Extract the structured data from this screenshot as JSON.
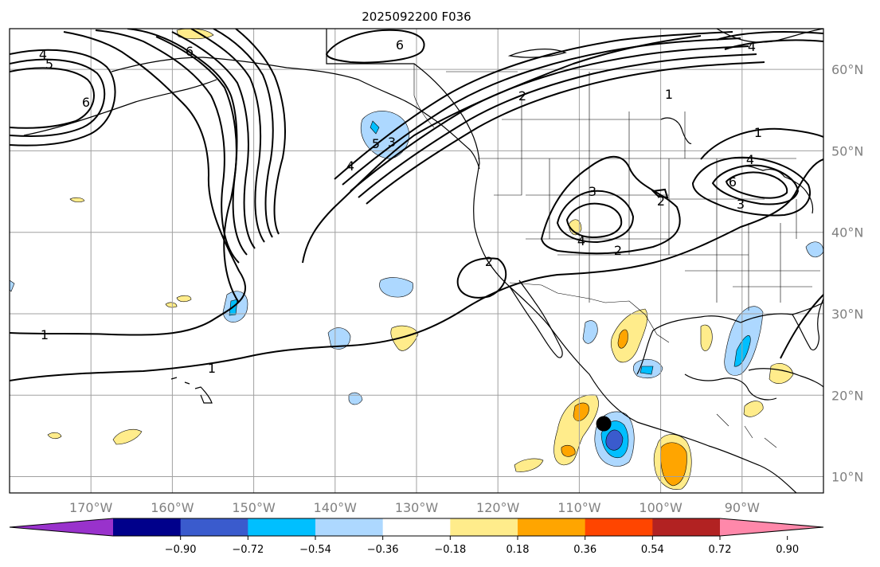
{
  "title": "2025092200 F036",
  "map": {
    "lat_labels": [
      {
        "value": 10,
        "label": "10°N"
      },
      {
        "value": 20,
        "label": "20°N"
      },
      {
        "value": 30,
        "label": "30°N"
      },
      {
        "value": 40,
        "label": "40°N"
      },
      {
        "value": 50,
        "label": "50°N"
      },
      {
        "value": 60,
        "label": "60°N"
      }
    ],
    "lon_labels": [
      {
        "value": -170,
        "label": "170°W"
      },
      {
        "value": -160,
        "label": "160°W"
      },
      {
        "value": -150,
        "label": "150°W"
      },
      {
        "value": -140,
        "label": "140°W"
      },
      {
        "value": -130,
        "label": "130°W"
      },
      {
        "value": -120,
        "label": "120°W"
      },
      {
        "value": -110,
        "label": "110°W"
      },
      {
        "value": -100,
        "label": "100°W"
      },
      {
        "value": -90,
        "label": "90°W"
      }
    ],
    "extent": {
      "lon_min": -180,
      "lon_max": -80,
      "lat_min": 8,
      "lat_max": 65
    },
    "contour_labels": [
      "1",
      "1",
      "1",
      "1",
      "2",
      "2",
      "2",
      "2",
      "3",
      "3",
      "3",
      "4",
      "4",
      "4",
      "4",
      "4",
      "5",
      "5",
      "6",
      "6",
      "6",
      "6"
    ],
    "marker": {
      "lon": -107,
      "lat": 16.5,
      "color": "#000000"
    }
  },
  "colorbar": {
    "ticks": [
      "−0.90",
      "−0.72",
      "−0.54",
      "−0.36",
      "−0.18",
      "0.18",
      "0.36",
      "0.54",
      "0.72",
      "0.90"
    ],
    "colors": [
      "#9932cc",
      "#00008b",
      "#3a5bcd",
      "#00bfff",
      "#add8ff",
      "#ffffff",
      "#ffec8b",
      "#ffa500",
      "#ff4500",
      "#b22222",
      "#ff88aa"
    ]
  }
}
